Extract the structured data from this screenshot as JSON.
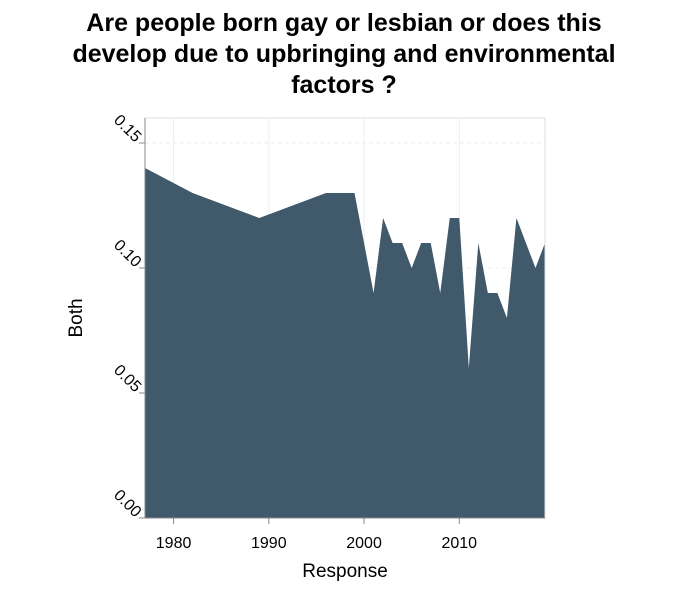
{
  "title_lines": [
    "Are people born gay or lesbian or does this",
    "develop due to upbringing and environmental",
    "factors ?"
  ],
  "colors": {
    "area": "#40596b",
    "grid": "#eeeeee",
    "axis": "#888888"
  },
  "chart_data": {
    "type": "area",
    "title": "Are people born gay or lesbian or does this develop due to upbringing and environmental factors ?",
    "xlabel": "Response",
    "ylabel": "Both",
    "xlim": [
      1977,
      2019
    ],
    "ylim": [
      0,
      0.16
    ],
    "x_ticks": [
      1980,
      1990,
      2000,
      2010
    ],
    "y_ticks": [
      0.0,
      0.05,
      0.1,
      0.15
    ],
    "y_tick_labels": [
      "0.00",
      "0.05",
      "0.10",
      "0.15"
    ],
    "grid": true,
    "x": [
      1977,
      1982,
      1989,
      1996,
      1998,
      1999,
      2001,
      2002,
      2003,
      2004,
      2005,
      2006,
      2007,
      2008,
      2009,
      2010,
      2011,
      2012,
      2013,
      2014,
      2015,
      2016,
      2018,
      2019
    ],
    "y": [
      0.14,
      0.13,
      0.12,
      0.13,
      0.13,
      0.13,
      0.09,
      0.12,
      0.11,
      0.11,
      0.1,
      0.11,
      0.11,
      0.09,
      0.12,
      0.12,
      0.06,
      0.11,
      0.09,
      0.09,
      0.08,
      0.12,
      0.1,
      0.11
    ]
  }
}
